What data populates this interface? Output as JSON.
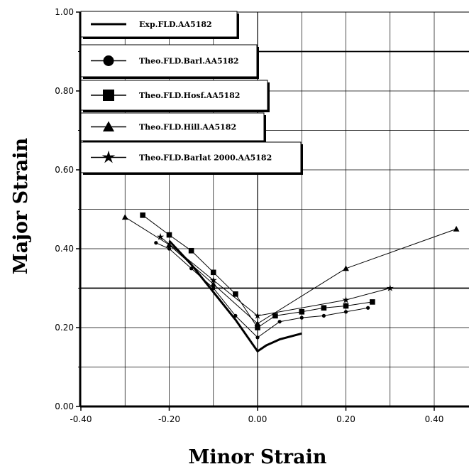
{
  "chart_data": {
    "type": "line",
    "xlabel": "Minor Strain",
    "ylabel": "Major Strain",
    "xlim": [
      -0.4,
      0.4
    ],
    "ylim": [
      0.0,
      1.0
    ],
    "x_ticks": [
      "-0.40",
      "-0.20",
      "0.00",
      "0.20",
      "0.40"
    ],
    "y_ticks": [
      "0.00",
      "0.20",
      "0.40",
      "0.60",
      "0.80",
      "1.00"
    ],
    "grid": true,
    "legend_position": "top-left",
    "series": [
      {
        "name": "Exp.FLD.AA5182",
        "marker": "none",
        "x": [
          -0.2,
          -0.15,
          -0.1,
          -0.05,
          0.0,
          0.02,
          0.05,
          0.1
        ],
        "y": [
          0.42,
          0.36,
          0.29,
          0.22,
          0.14,
          0.155,
          0.17,
          0.185
        ]
      },
      {
        "name": "Theo.FLD.Barl.AA5182",
        "marker": "circle",
        "x": [
          -0.23,
          -0.2,
          -0.15,
          -0.1,
          -0.05,
          0.0,
          0.05,
          0.1,
          0.15,
          0.2,
          0.25
        ],
        "y": [
          0.415,
          0.4,
          0.35,
          0.3,
          0.23,
          0.175,
          0.215,
          0.225,
          0.23,
          0.24,
          0.25
        ]
      },
      {
        "name": "Theo.FLD.Hosf.AA5182",
        "marker": "square",
        "x": [
          -0.26,
          -0.2,
          -0.15,
          -0.1,
          -0.05,
          0.0,
          0.04,
          0.1,
          0.15,
          0.2,
          0.26
        ],
        "y": [
          0.485,
          0.435,
          0.395,
          0.34,
          0.285,
          0.2,
          0.23,
          0.24,
          0.25,
          0.255,
          0.265
        ]
      },
      {
        "name": "Theo.FLD.Hill.AA5182",
        "marker": "triangle",
        "x": [
          -0.3,
          -0.2,
          -0.1,
          0.0,
          0.2,
          0.45
        ],
        "y": [
          0.48,
          0.41,
          0.31,
          0.21,
          0.35,
          0.45
        ]
      },
      {
        "name": "Theo.FLD.Barlat 2000.AA5182",
        "marker": "star",
        "x": [
          -0.22,
          -0.1,
          0.0,
          0.2,
          0.3
        ],
        "y": [
          0.43,
          0.32,
          0.23,
          0.27,
          0.3
        ]
      }
    ]
  }
}
